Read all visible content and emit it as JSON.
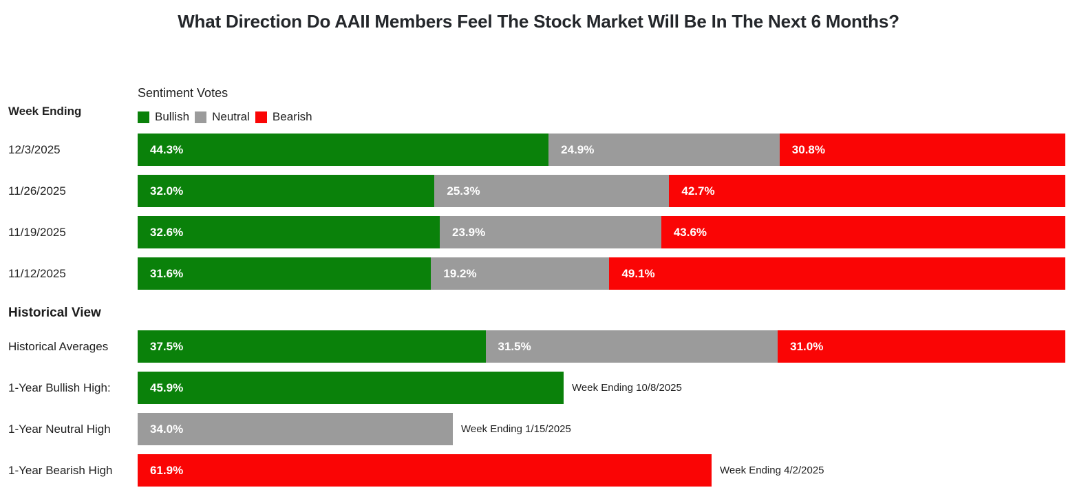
{
  "title": "What Direction Do AAII Members Feel The Stock Market Will Be In The Next 6 Months?",
  "colors": {
    "bullish": "#0a810a",
    "neutral": "#9b9b9b",
    "bearish": "#fa0505"
  },
  "chart_data": {
    "type": "bar",
    "orientation": "horizontal",
    "stacked": true,
    "subtitle": "Sentiment Votes",
    "row_header": "Week Ending",
    "legend": [
      {
        "name": "bullish",
        "label": "Bullish",
        "color": "#0a810a"
      },
      {
        "name": "neutral",
        "label": "Neutral",
        "color": "#9b9b9b"
      },
      {
        "name": "bearish",
        "label": "Bearish",
        "color": "#fa0505"
      }
    ],
    "xlim": [
      0,
      100
    ],
    "value_suffix": "%",
    "weekly_rows": [
      {
        "label": "12/3/2025",
        "bullish": 44.3,
        "neutral": 24.9,
        "bearish": 30.8
      },
      {
        "label": "11/26/2025",
        "bullish": 32.0,
        "neutral": 25.3,
        "bearish": 42.7
      },
      {
        "label": "11/19/2025",
        "bullish": 32.6,
        "neutral": 23.9,
        "bearish": 43.6
      },
      {
        "label": "11/12/2025",
        "bullish": 31.6,
        "neutral": 19.2,
        "bearish": 49.1
      }
    ],
    "historical_header": "Historical View",
    "historical_averages": {
      "label": "Historical Averages",
      "bullish": 37.5,
      "neutral": 31.5,
      "bearish": 31.0
    },
    "historical_highs": [
      {
        "label": "1-Year Bullish High:",
        "series": "bullish",
        "value": 45.9,
        "annotation": "Week Ending 10/8/2025"
      },
      {
        "label": "1-Year Neutral High",
        "series": "neutral",
        "value": 34.0,
        "annotation": "Week Ending 1/15/2025"
      },
      {
        "label": "1-Year Bearish High",
        "series": "bearish",
        "value": 61.9,
        "annotation": "Week Ending 4/2/2025"
      }
    ]
  }
}
